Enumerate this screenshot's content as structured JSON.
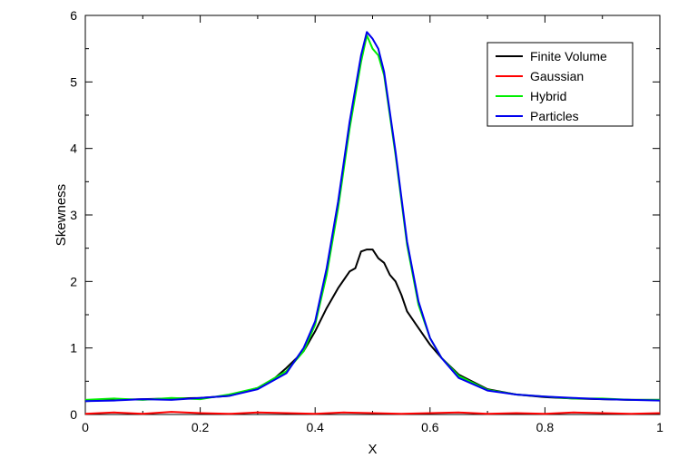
{
  "chart_data": {
    "type": "line",
    "xlabel": "X",
    "ylabel": "Skewness",
    "xlim": [
      0,
      1
    ],
    "ylim": [
      0,
      6
    ],
    "x_ticks": [
      "0",
      "0.2",
      "0.4",
      "0.6",
      "0.8",
      "1"
    ],
    "y_ticks": [
      "0",
      "1",
      "2",
      "3",
      "4",
      "5",
      "6"
    ],
    "grid": false,
    "legend_position": "top-right",
    "series": [
      {
        "name": "Finite Volume",
        "color": "#000000",
        "x": [
          0,
          0.05,
          0.1,
          0.15,
          0.2,
          0.25,
          0.3,
          0.33,
          0.35,
          0.38,
          0.4,
          0.42,
          0.44,
          0.46,
          0.47,
          0.48,
          0.49,
          0.5,
          0.51,
          0.52,
          0.53,
          0.54,
          0.55,
          0.56,
          0.58,
          0.6,
          0.62,
          0.65,
          0.7,
          0.75,
          0.8,
          0.85,
          0.9,
          0.95,
          1.0
        ],
        "y": [
          0.2,
          0.22,
          0.23,
          0.24,
          0.25,
          0.28,
          0.4,
          0.55,
          0.7,
          0.95,
          1.25,
          1.6,
          1.9,
          2.15,
          2.2,
          2.45,
          2.48,
          2.48,
          2.35,
          2.28,
          2.1,
          2.0,
          1.8,
          1.55,
          1.3,
          1.05,
          0.85,
          0.6,
          0.38,
          0.3,
          0.26,
          0.24,
          0.23,
          0.22,
          0.22
        ]
      },
      {
        "name": "Gaussian",
        "color": "#ff0000",
        "x": [
          0,
          0.05,
          0.1,
          0.15,
          0.2,
          0.25,
          0.3,
          0.35,
          0.4,
          0.45,
          0.5,
          0.55,
          0.6,
          0.65,
          0.7,
          0.75,
          0.8,
          0.85,
          0.9,
          0.95,
          1.0
        ],
        "y": [
          0.01,
          0.03,
          0.01,
          0.04,
          0.02,
          0.01,
          0.03,
          0.02,
          0.01,
          0.03,
          0.02,
          0.01,
          0.02,
          0.03,
          0.01,
          0.02,
          0.01,
          0.03,
          0.02,
          0.01,
          0.02
        ]
      },
      {
        "name": "Hybrid",
        "color": "#00ee00",
        "x": [
          0,
          0.05,
          0.1,
          0.15,
          0.2,
          0.25,
          0.3,
          0.35,
          0.38,
          0.4,
          0.42,
          0.44,
          0.46,
          0.48,
          0.49,
          0.5,
          0.51,
          0.52,
          0.54,
          0.56,
          0.58,
          0.6,
          0.62,
          0.65,
          0.7,
          0.75,
          0.8,
          0.85,
          0.9,
          0.95,
          1.0
        ],
        "y": [
          0.22,
          0.24,
          0.22,
          0.25,
          0.23,
          0.3,
          0.4,
          0.65,
          0.95,
          1.35,
          2.1,
          3.1,
          4.3,
          5.3,
          5.7,
          5.5,
          5.4,
          5.1,
          3.9,
          2.55,
          1.65,
          1.15,
          0.85,
          0.58,
          0.37,
          0.3,
          0.27,
          0.24,
          0.24,
          0.22,
          0.22
        ]
      },
      {
        "name": "Particles",
        "color": "#0000ee",
        "x": [
          0,
          0.05,
          0.1,
          0.15,
          0.2,
          0.25,
          0.3,
          0.35,
          0.38,
          0.4,
          0.42,
          0.44,
          0.46,
          0.48,
          0.49,
          0.5,
          0.51,
          0.52,
          0.54,
          0.56,
          0.58,
          0.6,
          0.62,
          0.65,
          0.7,
          0.75,
          0.8,
          0.85,
          0.9,
          0.95,
          1.0
        ],
        "y": [
          0.2,
          0.21,
          0.23,
          0.22,
          0.25,
          0.28,
          0.38,
          0.62,
          1.0,
          1.4,
          2.2,
          3.2,
          4.4,
          5.4,
          5.75,
          5.65,
          5.5,
          5.15,
          3.95,
          2.6,
          1.7,
          1.15,
          0.85,
          0.55,
          0.36,
          0.3,
          0.27,
          0.25,
          0.23,
          0.22,
          0.21
        ]
      }
    ]
  }
}
